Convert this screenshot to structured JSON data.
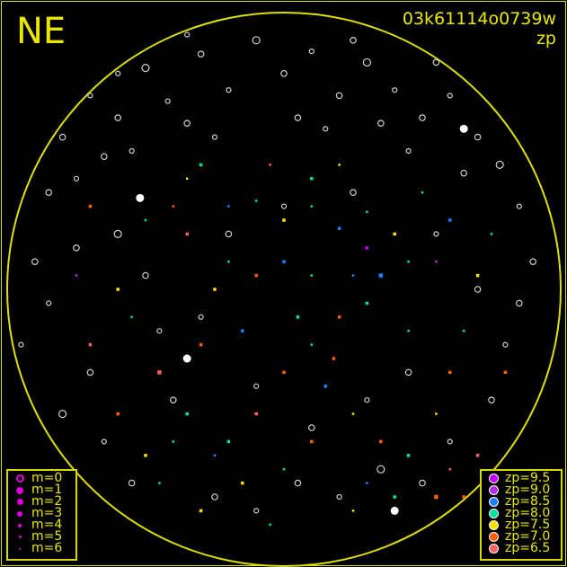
{
  "title_left": "NE",
  "title_right_1": "03k61114o0739w",
  "title_right_2": "zp",
  "colors": {
    "frame": "#e0e000",
    "circle": "#e0e000",
    "text": "#e8e800",
    "undetected": "#d0d0d0"
  },
  "magnitude_legend": [
    {
      "label": "m=0",
      "size": 7,
      "open": true
    },
    {
      "label": "m=1",
      "size": 8
    },
    {
      "label": "m=2",
      "size": 7
    },
    {
      "label": "m=3",
      "size": 6
    },
    {
      "label": "m=4",
      "size": 4
    },
    {
      "label": "m=5",
      "size": 3
    },
    {
      "label": "m=6",
      "size": 2
    }
  ],
  "zp_legend": [
    {
      "label": "zp=9.5",
      "color": "#c000ff"
    },
    {
      "label": "zp=9.0",
      "color": "#b030e0"
    },
    {
      "label": "zp=8.5",
      "color": "#2080ff"
    },
    {
      "label": "zp=8.0",
      "color": "#00e0a0"
    },
    {
      "label": "zp=7.5",
      "color": "#ffe000"
    },
    {
      "label": "zp=7.0",
      "color": "#ff6000"
    },
    {
      "label": "zp=6.5",
      "color": "#ff6060"
    }
  ],
  "chart_data": {
    "type": "scatter",
    "projection": "all-sky circle",
    "point_format": [
      "x",
      "y",
      "zp",
      "m"
    ],
    "undetected_points": [
      [
        -0.8,
        0.55,
        null,
        3
      ],
      [
        -0.7,
        0.7,
        null,
        4
      ],
      [
        -0.6,
        0.62,
        null,
        3
      ],
      [
        -0.5,
        0.8,
        null,
        2
      ],
      [
        -0.42,
        0.68,
        null,
        4
      ],
      [
        -0.3,
        0.85,
        null,
        3
      ],
      [
        -0.2,
        0.72,
        null,
        4
      ],
      [
        -0.1,
        0.9,
        null,
        2
      ],
      [
        0.0,
        0.78,
        null,
        3
      ],
      [
        0.1,
        0.86,
        null,
        4
      ],
      [
        0.2,
        0.7,
        null,
        3
      ],
      [
        0.3,
        0.82,
        null,
        2
      ],
      [
        0.4,
        0.72,
        null,
        4
      ],
      [
        0.5,
        0.62,
        null,
        3
      ],
      [
        0.6,
        0.7,
        null,
        4
      ],
      [
        0.7,
        0.55,
        null,
        3
      ],
      [
        0.78,
        0.45,
        null,
        2
      ],
      [
        -0.85,
        0.35,
        null,
        3
      ],
      [
        -0.75,
        0.4,
        null,
        4
      ],
      [
        -0.65,
        0.48,
        null,
        3
      ],
      [
        -0.55,
        0.5,
        null,
        4
      ],
      [
        -0.35,
        0.6,
        null,
        3
      ],
      [
        -0.25,
        0.55,
        null,
        4
      ],
      [
        0.05,
        0.62,
        null,
        3
      ],
      [
        0.15,
        0.58,
        null,
        4
      ],
      [
        0.35,
        0.6,
        null,
        3
      ],
      [
        0.45,
        0.5,
        null,
        4
      ],
      [
        0.65,
        0.42,
        null,
        3
      ],
      [
        0.85,
        0.3,
        null,
        4
      ],
      [
        0.9,
        0.1,
        null,
        3
      ],
      [
        -0.9,
        0.1,
        null,
        3
      ],
      [
        -0.85,
        -0.05,
        null,
        4
      ],
      [
        -0.75,
        0.15,
        null,
        3
      ],
      [
        -0.6,
        0.2,
        null,
        2
      ],
      [
        -0.5,
        0.05,
        null,
        3
      ],
      [
        -0.45,
        -0.15,
        null,
        4
      ],
      [
        -0.7,
        -0.3,
        null,
        3
      ],
      [
        -0.8,
        -0.45,
        null,
        2
      ],
      [
        -0.65,
        -0.55,
        null,
        4
      ],
      [
        -0.55,
        -0.7,
        null,
        3
      ],
      [
        -0.4,
        -0.4,
        null,
        3
      ],
      [
        -0.3,
        -0.1,
        null,
        4
      ],
      [
        -0.2,
        0.2,
        null,
        3
      ],
      [
        0.0,
        0.3,
        null,
        4
      ],
      [
        0.25,
        0.35,
        null,
        3
      ],
      [
        0.55,
        0.2,
        null,
        4
      ],
      [
        0.7,
        0.0,
        null,
        3
      ],
      [
        0.8,
        -0.2,
        null,
        4
      ],
      [
        0.75,
        -0.4,
        null,
        3
      ],
      [
        0.6,
        -0.55,
        null,
        4
      ],
      [
        0.5,
        -0.7,
        null,
        3
      ],
      [
        0.35,
        -0.65,
        null,
        2
      ],
      [
        0.2,
        -0.75,
        null,
        4
      ],
      [
        0.05,
        -0.7,
        null,
        3
      ],
      [
        -0.1,
        -0.8,
        null,
        4
      ],
      [
        -0.25,
        -0.75,
        null,
        3
      ],
      [
        0.1,
        -0.5,
        null,
        3
      ],
      [
        0.3,
        -0.4,
        null,
        4
      ],
      [
        0.45,
        -0.3,
        null,
        3
      ],
      [
        -0.1,
        -0.35,
        null,
        4
      ],
      [
        0.25,
        0.9,
        null,
        3
      ],
      [
        -0.35,
        0.92,
        null,
        4
      ],
      [
        0.55,
        0.82,
        null,
        3
      ],
      [
        -0.6,
        0.78,
        null,
        4
      ],
      [
        0.85,
        -0.05,
        null,
        3
      ],
      [
        -0.95,
        -0.2,
        null,
        4
      ],
      [
        0.65,
        0.58,
        null,
        1
      ],
      [
        -0.52,
        0.33,
        null,
        1
      ],
      [
        -0.35,
        -0.25,
        null,
        1
      ],
      [
        0.4,
        -0.8,
        null,
        1
      ]
    ],
    "detected_points": [
      [
        -0.3,
        0.45,
        8.0,
        4
      ],
      [
        -0.2,
        0.3,
        8.5,
        5
      ],
      [
        -0.1,
        0.32,
        8.0,
        5
      ],
      [
        0.0,
        0.25,
        7.5,
        4
      ],
      [
        0.1,
        0.3,
        8.0,
        5
      ],
      [
        0.2,
        0.22,
        8.5,
        4
      ],
      [
        0.3,
        0.28,
        8.0,
        5
      ],
      [
        0.4,
        0.2,
        7.5,
        4
      ],
      [
        0.45,
        0.1,
        8.0,
        5
      ],
      [
        0.35,
        0.05,
        8.5,
        3
      ],
      [
        0.3,
        -0.05,
        8.0,
        4
      ],
      [
        0.2,
        -0.1,
        7.0,
        4
      ],
      [
        0.1,
        0.05,
        8.0,
        5
      ],
      [
        0.0,
        0.1,
        8.5,
        4
      ],
      [
        -0.1,
        0.05,
        7.0,
        4
      ],
      [
        -0.2,
        0.1,
        8.0,
        5
      ],
      [
        -0.25,
        0.0,
        7.5,
        4
      ],
      [
        -0.35,
        0.2,
        6.5,
        4
      ],
      [
        -0.4,
        0.3,
        7.0,
        5
      ],
      [
        -0.5,
        0.25,
        8.0,
        5
      ],
      [
        -0.6,
        0.0,
        7.5,
        4
      ],
      [
        -0.55,
        -0.1,
        8.0,
        5
      ],
      [
        -0.45,
        -0.3,
        6.5,
        3
      ],
      [
        -0.35,
        -0.45,
        8.0,
        4
      ],
      [
        -0.25,
        -0.6,
        8.5,
        5
      ],
      [
        -0.15,
        -0.7,
        7.5,
        4
      ],
      [
        0.0,
        -0.65,
        8.0,
        5
      ],
      [
        0.1,
        -0.55,
        7.0,
        4
      ],
      [
        0.15,
        -0.35,
        8.5,
        4
      ],
      [
        0.1,
        -0.2,
        8.0,
        5
      ],
      [
        0.0,
        -0.3,
        7.0,
        4
      ],
      [
        -0.1,
        -0.45,
        6.5,
        4
      ],
      [
        0.25,
        -0.45,
        7.5,
        5
      ],
      [
        0.35,
        -0.55,
        7.0,
        4
      ],
      [
        0.45,
        -0.6,
        8.0,
        4
      ],
      [
        0.55,
        -0.45,
        7.5,
        5
      ],
      [
        0.6,
        -0.3,
        7.0,
        4
      ],
      [
        0.65,
        -0.15,
        8.0,
        5
      ],
      [
        0.7,
        0.05,
        7.5,
        4
      ],
      [
        0.75,
        0.2,
        8.0,
        5
      ],
      [
        0.8,
        -0.3,
        7.0,
        4
      ],
      [
        0.7,
        -0.6,
        6.5,
        4
      ],
      [
        0.55,
        -0.75,
        7.0,
        3
      ],
      [
        0.4,
        -0.75,
        8.0,
        4
      ],
      [
        0.25,
        -0.8,
        7.5,
        5
      ],
      [
        -0.05,
        -0.85,
        8.0,
        5
      ],
      [
        -0.3,
        -0.8,
        7.5,
        4
      ],
      [
        -0.45,
        -0.7,
        8.0,
        5
      ],
      [
        -0.6,
        -0.45,
        7.0,
        4
      ],
      [
        -0.7,
        -0.2,
        6.5,
        4
      ],
      [
        -0.75,
        0.05,
        9.0,
        5
      ],
      [
        -0.7,
        0.3,
        7.0,
        4
      ],
      [
        -0.35,
        0.4,
        7.5,
        5
      ],
      [
        0.1,
        0.4,
        8.0,
        4
      ],
      [
        0.2,
        0.45,
        7.5,
        5
      ],
      [
        0.5,
        0.35,
        8.0,
        5
      ],
      [
        0.6,
        0.25,
        8.5,
        4
      ],
      [
        0.55,
        0.1,
        9.0,
        5
      ],
      [
        0.3,
        0.15,
        9.5,
        4
      ],
      [
        -0.15,
        -0.15,
        8.5,
        4
      ],
      [
        0.05,
        -0.1,
        8.0,
        4
      ],
      [
        0.18,
        -0.25,
        7.0,
        4
      ],
      [
        -0.05,
        0.45,
        6.5,
        5
      ],
      [
        -0.4,
        -0.55,
        8.0,
        5
      ],
      [
        -0.5,
        -0.6,
        7.5,
        4
      ],
      [
        0.6,
        -0.65,
        6.5,
        5
      ],
      [
        0.65,
        -0.75,
        7.0,
        4
      ],
      [
        0.3,
        -0.7,
        8.5,
        5
      ],
      [
        -0.2,
        -0.55,
        8.0,
        4
      ],
      [
        -0.3,
        -0.2,
        7.0,
        4
      ],
      [
        0.45,
        -0.15,
        8.0,
        5
      ],
      [
        0.25,
        0.05,
        8.5,
        5
      ]
    ]
  }
}
